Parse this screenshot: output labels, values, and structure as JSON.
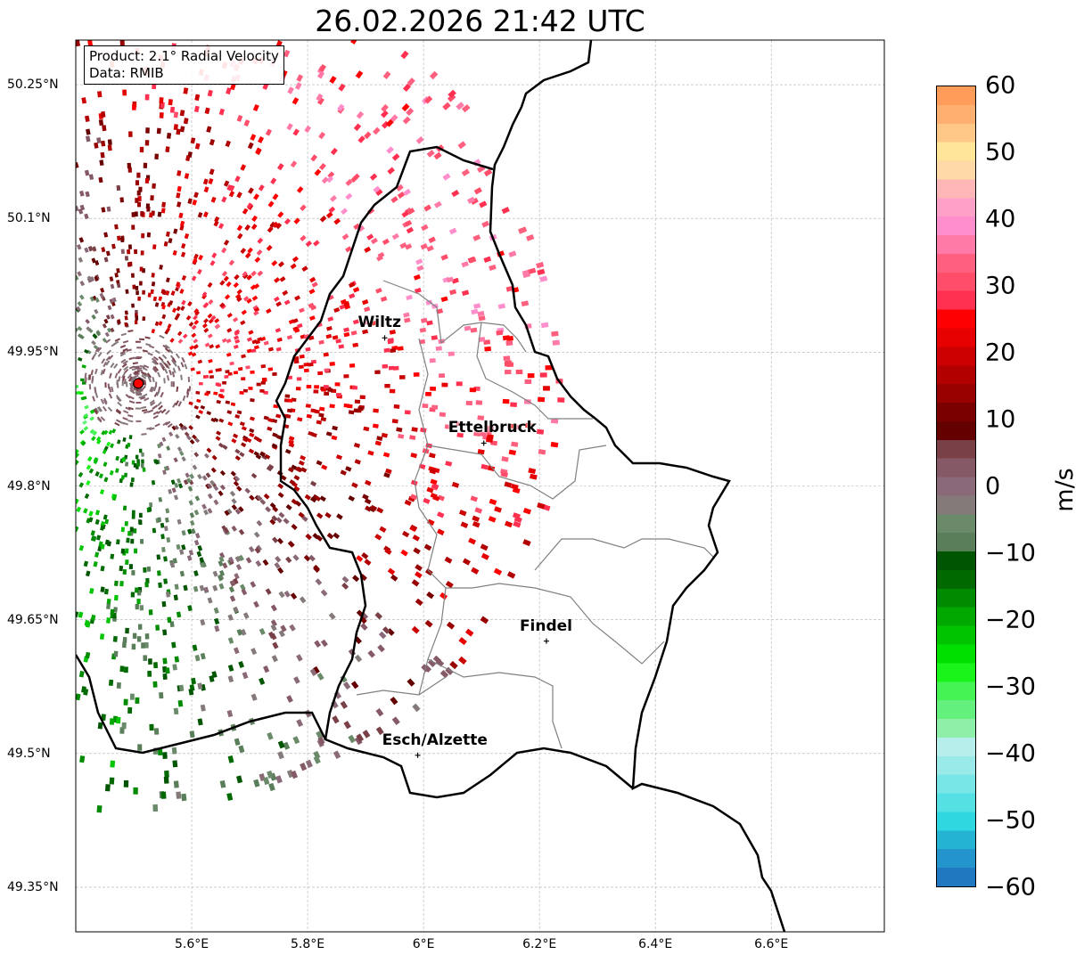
{
  "title": "26.02.2026 21:42 UTC",
  "info": {
    "product": "Product: 2.1° Radial Velocity",
    "data": "Data: RMIB"
  },
  "x_ticks": [
    {
      "lon": 5.6,
      "label": "5.6°E"
    },
    {
      "lon": 5.8,
      "label": "5.8°E"
    },
    {
      "lon": 6.0,
      "label": "6°E"
    },
    {
      "lon": 6.2,
      "label": "6.2°E"
    },
    {
      "lon": 6.4,
      "label": "6.4°E"
    },
    {
      "lon": 6.6,
      "label": "6.6°E"
    }
  ],
  "y_ticks": [
    {
      "lat": 50.25,
      "label": "50.25°N"
    },
    {
      "lat": 50.1,
      "label": "50.1°N"
    },
    {
      "lat": 49.95,
      "label": "49.95°N"
    },
    {
      "lat": 49.8,
      "label": "49.8°N"
    },
    {
      "lat": 49.65,
      "label": "49.65°N"
    },
    {
      "lat": 49.5,
      "label": "49.5°N"
    },
    {
      "lat": 49.35,
      "label": "49.35°N"
    }
  ],
  "extent": {
    "lon": [
      5.4,
      6.795
    ],
    "lat": [
      49.3,
      50.3
    ]
  },
  "radar": {
    "lon": 5.508,
    "lat": 49.915,
    "color": "#ff0000"
  },
  "cities": [
    {
      "name": "Wiltz",
      "lon": 5.933,
      "lat": 49.966
    },
    {
      "name": "Ettelbruck",
      "lon": 6.104,
      "lat": 49.848
    },
    {
      "name": "Findel",
      "lon": 6.212,
      "lat": 49.626
    },
    {
      "name": "Esch/Alzette",
      "lon": 5.99,
      "lat": 49.498
    }
  ],
  "colorbar": {
    "label": "m/s",
    "range": [
      -60,
      60
    ],
    "ticks": [
      {
        "v": 60,
        "label": "60"
      },
      {
        "v": 50,
        "label": "50"
      },
      {
        "v": 40,
        "label": "40"
      },
      {
        "v": 30,
        "label": "30"
      },
      {
        "v": 20,
        "label": "20"
      },
      {
        "v": 10,
        "label": "10"
      },
      {
        "v": 0,
        "label": "0"
      },
      {
        "v": -10,
        "label": "−10"
      },
      {
        "v": -20,
        "label": "−20"
      },
      {
        "v": -30,
        "label": "−30"
      },
      {
        "v": -40,
        "label": "−40"
      },
      {
        "v": -50,
        "label": "−50"
      },
      {
        "v": -60,
        "label": "−60"
      }
    ],
    "stops": [
      "#1f78c0",
      "#2495cc",
      "#25b3d3",
      "#2fd8e0",
      "#55e0e4",
      "#78e6e6",
      "#9aeae9",
      "#b6eeec",
      "#8ef0a8",
      "#64f07c",
      "#46f354",
      "#1bf41b",
      "#00e000",
      "#00c400",
      "#00a800",
      "#008a00",
      "#006a00",
      "#005500",
      "#5a7e5a",
      "#6a8a6a",
      "#857a7a",
      "#8a6a78",
      "#855a66",
      "#7a4048",
      "#640000",
      "#7a0000",
      "#990000",
      "#b20000",
      "#cc0000",
      "#e60000",
      "#ff0000",
      "#ff3050",
      "#ff4d6a",
      "#ff6080",
      "#ff7aa6",
      "#ff8ecc",
      "#ffa0c8",
      "#ffb6b6",
      "#ffd9a8",
      "#ffe598",
      "#ffc888",
      "#ffb070",
      "#ff9c5a"
    ]
  }
}
